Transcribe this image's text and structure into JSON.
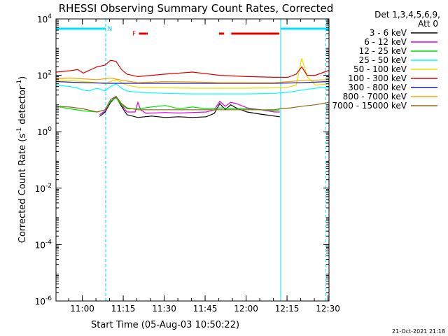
{
  "chart_data": {
    "type": "line",
    "title": "RHESSI Observing Summary Count Rates, Corrected",
    "xlabel": "Start Time (05-Aug-03 10:50:22)",
    "ylabel_prefix": "Corrected Count Rate (s",
    "ylabel_sup1": "-1",
    "ylabel_mid": " detector",
    "ylabel_sup2": "-1",
    "ylabel_suffix": ")",
    "y_scale": "log",
    "ylim": [
      1e-06,
      10000
    ],
    "xlim_minutes": [
      0,
      100
    ],
    "x_tick_minutes": [
      9.63,
      24.63,
      39.63,
      54.63,
      69.63,
      84.63,
      99.63
    ],
    "x_tick_labels": [
      "11:00",
      "11:15",
      "11:30",
      "11:45",
      "12:00",
      "12:15",
      "12:30"
    ],
    "y_ticks": [
      {
        "value": 1e-06,
        "base": "10",
        "exp": "-6"
      },
      {
        "value": 0.0001,
        "base": "10",
        "exp": "-4"
      },
      {
        "value": 0.01,
        "base": "10",
        "exp": "-2"
      },
      {
        "value": 1,
        "base": "10",
        "exp": "0"
      },
      {
        "value": 100,
        "base": "10",
        "exp": "2"
      },
      {
        "value": 10000,
        "base": "10",
        "exp": "4"
      }
    ],
    "legend_header_line1": "Det 1,3,4,5,6,9,",
    "legend_header_line2": "Att 0",
    "legend_placement": "right",
    "annotations": {
      "night_label": "N",
      "flare_label": "F",
      "footer_date": "21-Oct-2021 21:18"
    },
    "night_intervals_minutes": [
      [
        -2,
        18.2
      ],
      [
        82.3,
        100
      ]
    ],
    "flare_intervals_minutes": [
      [
        30.4,
        33.6
      ],
      [
        59.7,
        61.6
      ],
      [
        64.2,
        81.8
      ]
    ],
    "series": [
      {
        "name": "3 - 6 keV",
        "color": "#000000",
        "x": [
          16,
          18,
          20,
          22,
          24,
          26,
          30,
          35,
          40,
          45,
          50,
          55,
          58,
          60,
          62,
          64,
          66,
          70,
          75,
          80,
          82
        ],
        "y": [
          3.5,
          5,
          11,
          17,
          8,
          4,
          3.2,
          3.6,
          3.2,
          3.4,
          3.2,
          3.4,
          4.5,
          10,
          6,
          9,
          7,
          5,
          4.2,
          3.6,
          3.4
        ]
      },
      {
        "name": "6 - 12 keV",
        "color": "#e000e0",
        "x": [
          16,
          18,
          20,
          22,
          24,
          26,
          29,
          30,
          31,
          33,
          40,
          45,
          50,
          55,
          58,
          60,
          62,
          64,
          66,
          70,
          75,
          80,
          82
        ],
        "y": [
          4,
          5.5,
          12,
          18,
          9,
          5,
          5,
          11,
          6,
          4.5,
          4.8,
          4.6,
          4.8,
          5,
          6,
          12,
          8,
          11,
          10,
          7,
          6,
          5,
          5
        ]
      },
      {
        "name": "12 - 25 keV",
        "color": "#00e000",
        "x": [
          0,
          5,
          10,
          15,
          18,
          20,
          22,
          24,
          26,
          30,
          35,
          40,
          45,
          50,
          55,
          60,
          65,
          70,
          75,
          80,
          82
        ],
        "y": [
          8,
          6.5,
          5.5,
          5,
          6,
          12,
          16,
          9,
          6.5,
          6.5,
          7.5,
          8.5,
          6.5,
          7.5,
          6.5,
          7,
          6.5,
          6.5,
          6,
          5.5,
          6
        ]
      },
      {
        "name": "25 - 50 keV",
        "color": "#00ffff",
        "x": [
          0,
          5,
          8,
          10,
          12,
          15,
          18,
          20,
          22,
          24,
          26,
          30,
          40,
          50,
          60,
          70,
          80,
          85,
          90,
          95,
          100
        ],
        "y": [
          45,
          40,
          35,
          30,
          28,
          35,
          28,
          40,
          50,
          35,
          28,
          25,
          23,
          22,
          22,
          22,
          23,
          25,
          30,
          35,
          38
        ]
      },
      {
        "name": "50 - 100 keV",
        "color": "#e8e000",
        "x": [
          0,
          5,
          10,
          15,
          18,
          20,
          22,
          24,
          26,
          30,
          40,
          50,
          60,
          70,
          80,
          85,
          88,
          90,
          92,
          95,
          100
        ],
        "y": [
          70,
          65,
          60,
          55,
          50,
          60,
          70,
          55,
          45,
          38,
          36,
          35,
          35,
          35,
          36,
          38,
          45,
          400,
          90,
          45,
          50
        ]
      },
      {
        "name": "100 - 300 keV",
        "color": "#e00000",
        "x": [
          0,
          5,
          8,
          10,
          15,
          18,
          20,
          22,
          24,
          26,
          30,
          40,
          50,
          60,
          70,
          80,
          85,
          88,
          90,
          92,
          95,
          100
        ],
        "y": [
          130,
          145,
          160,
          120,
          200,
          230,
          340,
          310,
          160,
          110,
          90,
          110,
          130,
          100,
          90,
          85,
          85,
          110,
          200,
          100,
          100,
          150
        ]
      },
      {
        "name": "300 - 800 keV",
        "color": "#1a1ab0",
        "x": [
          0,
          10,
          20,
          30,
          40,
          50,
          60,
          70,
          80,
          90,
          100
        ],
        "y": [
          60,
          55,
          52,
          52,
          52,
          52,
          52,
          52,
          52,
          55,
          60
        ]
      },
      {
        "name": "800 - 7000 keV",
        "color": "#ffa000",
        "x": [
          0,
          5,
          10,
          15,
          20,
          25,
          30,
          40,
          50,
          60,
          70,
          80,
          90,
          100
        ],
        "y": [
          75,
          80,
          75,
          70,
          80,
          65,
          55,
          60,
          58,
          55,
          55,
          55,
          65,
          70
        ]
      },
      {
        "name": "7000 - 15000 keV",
        "color": "#8b6914",
        "x": [
          0,
          5,
          10,
          15,
          18,
          20,
          22,
          24,
          26,
          30,
          40,
          50,
          60,
          70,
          80,
          82,
          86,
          90,
          95,
          100
        ],
        "y": [
          8,
          7.5,
          6.5,
          5,
          6,
          14,
          18,
          10,
          7,
          6,
          6,
          6,
          6,
          6,
          6,
          6.5,
          7,
          8,
          9,
          11
        ]
      }
    ]
  }
}
